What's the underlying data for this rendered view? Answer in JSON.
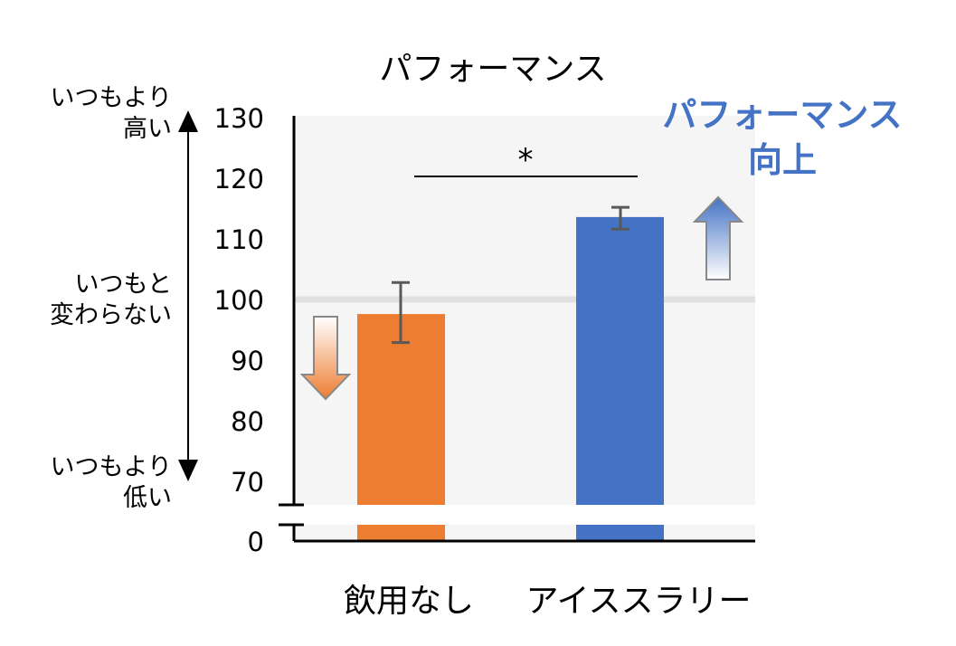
{
  "chart_data": {
    "type": "bar",
    "title": "パフォーマンス",
    "categories": [
      "飲用なし",
      "アイススラリー"
    ],
    "values": [
      97.6,
      113.6
    ],
    "error_bars": [
      [
        92.9,
        102.8
      ],
      [
        111.6,
        115.2
      ]
    ],
    "colors": [
      "#ED7D31",
      "#4472C4"
    ],
    "reference_line": 100,
    "yticks": [
      0,
      70,
      80,
      90,
      100,
      110,
      120,
      130
    ],
    "ylim_upper": [
      70,
      130
    ],
    "axis_break": [
      0,
      70
    ],
    "significance": "*",
    "left_annotations": {
      "top": "いつもより\n高い",
      "middle": "いつもと\n変わらない",
      "bottom": "いつもより\n低い"
    },
    "highlight": "パフォーマンス\n向上"
  }
}
